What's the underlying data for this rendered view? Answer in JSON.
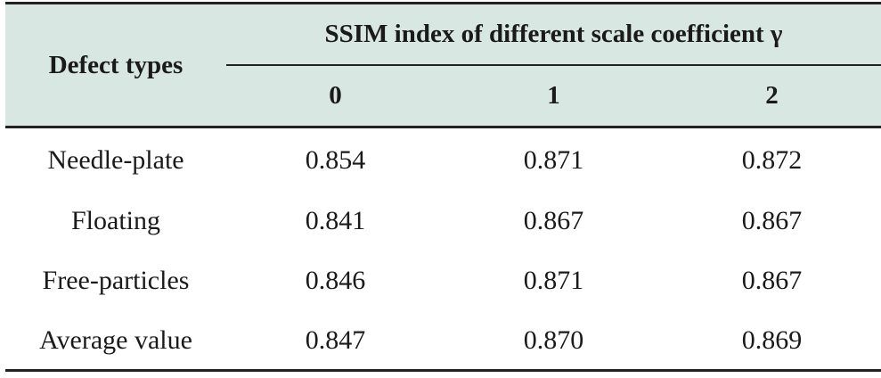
{
  "table": {
    "header": {
      "row_label": "Defect types",
      "group_label": "SSIM index of different scale coefficient γ",
      "columns": [
        "0",
        "1",
        "2"
      ]
    },
    "rows": [
      {
        "name": "Needle-plate",
        "values": [
          "0.854",
          "0.871",
          "0.872"
        ]
      },
      {
        "name": "Floating",
        "values": [
          "0.841",
          "0.867",
          "0.867"
        ]
      },
      {
        "name": "Free-particles",
        "values": [
          "0.846",
          "0.871",
          "0.867"
        ]
      },
      {
        "name": "Average value",
        "values": [
          "0.847",
          "0.870",
          "0.869"
        ]
      }
    ]
  },
  "colors": {
    "header_background": "#d9e7e3",
    "rules": "#222222",
    "text": "#1a1a1a"
  }
}
